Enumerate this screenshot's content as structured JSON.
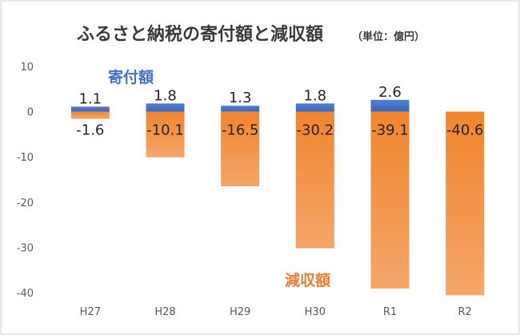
{
  "chart_data": {
    "type": "bar",
    "title": "ふるさと納税の寄付額と減収額",
    "subtitle": "（単位：億円）",
    "categories": [
      "H27",
      "H28",
      "H29",
      "H30",
      "R1",
      "R2"
    ],
    "series": [
      {
        "name": "寄付額",
        "color": "#4472C4",
        "values": [
          1.1,
          1.8,
          1.3,
          1.8,
          2.6,
          null
        ],
        "labels": [
          "1.1",
          "1.8",
          "1.3",
          "1.8",
          "2.6",
          ""
        ]
      },
      {
        "name": "減収額",
        "color": "#ED7D31",
        "values": [
          -1.6,
          -10.1,
          -16.5,
          -30.2,
          -39.1,
          -40.6
        ],
        "labels": [
          "-1.6",
          "-10.1",
          "-16.5",
          "-30.2",
          "-39.1",
          "-40.6"
        ]
      }
    ],
    "yticks": [
      "10",
      "0",
      "-10",
      "-20",
      "-30",
      "-40"
    ],
    "ylim": [
      -40,
      10
    ],
    "grid": false,
    "xlabel": "",
    "ylabel": ""
  }
}
